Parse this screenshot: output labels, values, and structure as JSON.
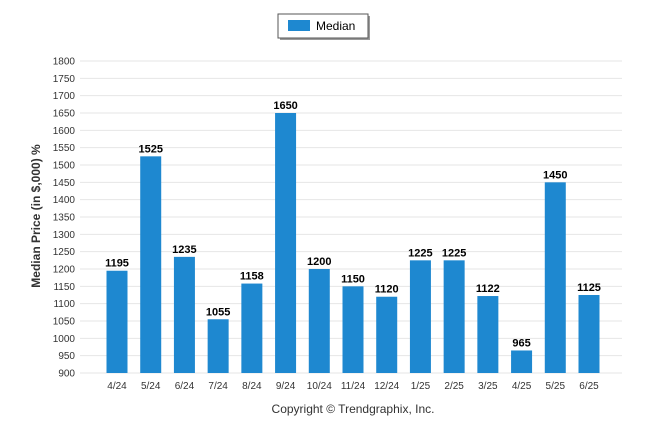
{
  "chart_data": {
    "type": "bar",
    "categories": [
      "4/24",
      "5/24",
      "6/24",
      "7/24",
      "8/24",
      "9/24",
      "10/24",
      "11/24",
      "12/24",
      "1/25",
      "2/25",
      "3/25",
      "4/25",
      "5/25",
      "6/25"
    ],
    "series": [
      {
        "name": "Median",
        "values": [
          1195,
          1525,
          1235,
          1055,
          1158,
          1650,
          1200,
          1150,
          1120,
          1225,
          1225,
          1122,
          965,
          1450,
          1125
        ]
      }
    ],
    "ylabel": "Median Price (in $,000) %",
    "xlabel": "",
    "ylim": [
      900,
      1800
    ],
    "ytick_step": 50,
    "grid": true,
    "legend_position": "top-center",
    "bar_color": "#1e88d0"
  },
  "footer": {
    "copyright": "Copyright © Trendgraphix, Inc."
  }
}
